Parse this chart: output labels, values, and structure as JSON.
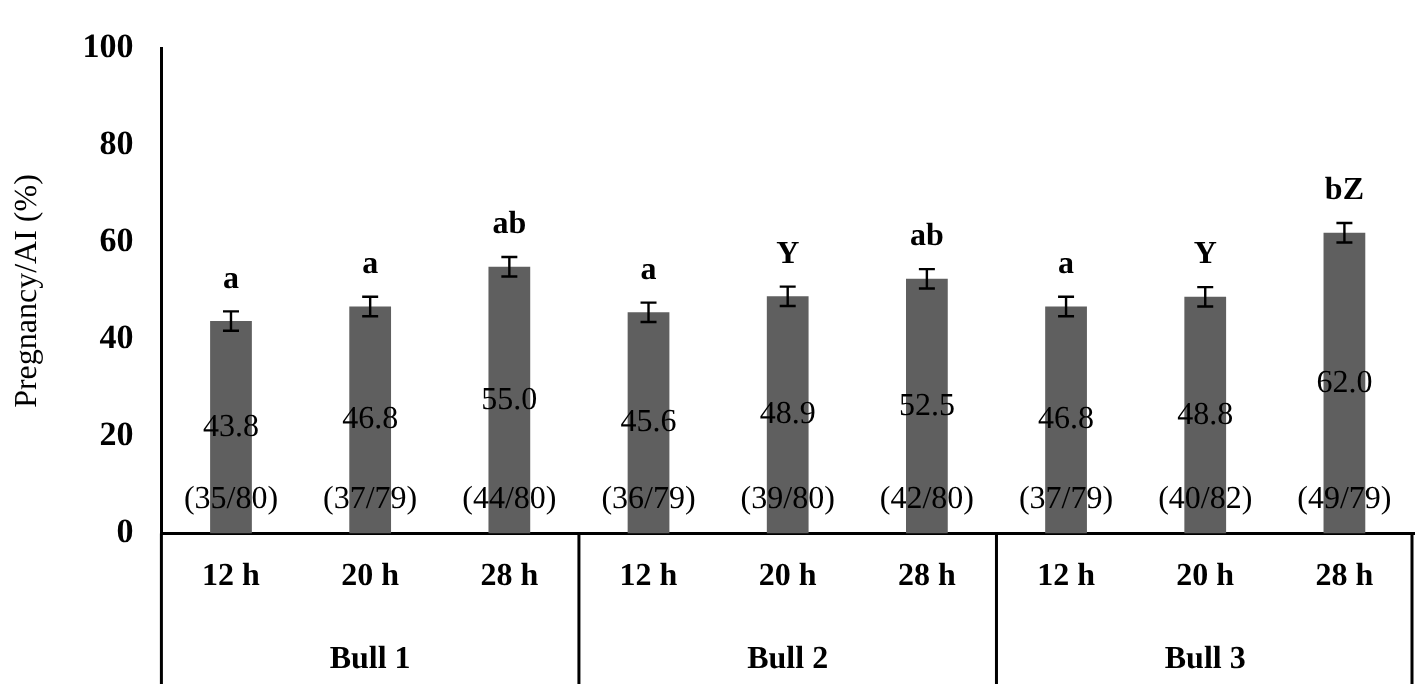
{
  "chart_data": {
    "type": "bar",
    "ylabel": "Pregnancy/AI (%)",
    "categories": [
      "12 h",
      "20 h",
      "28 h",
      "12 h",
      "20 h",
      "28 h",
      "12 h",
      "20 h",
      "28 h"
    ],
    "values": [
      43.8,
      46.8,
      55.0,
      45.6,
      48.9,
      52.5,
      46.8,
      48.8,
      62.0
    ],
    "errors": [
      2,
      2,
      2,
      2,
      2,
      2,
      2,
      2,
      2
    ],
    "value_labels": [
      "43.8",
      "46.8",
      "55.0",
      "45.6",
      "48.9",
      "52.5",
      "46.8",
      "48.8",
      "62.0"
    ],
    "color": "#5f5f5f",
    "ylim": [
      0,
      100
    ],
    "yticks": [
      0,
      20,
      40,
      60,
      80,
      100
    ],
    "grid": false,
    "legend": false,
    "annotations": [
      "a",
      "a",
      "ab",
      "a",
      "Y",
      "ab",
      "a",
      "Y",
      "bZ",
      "(35/80)",
      "(37/79)",
      "(44/80)",
      "(36/79)",
      "(39/80)",
      "(42/80)",
      "(37/79)",
      "(40/82)",
      "(49/79)",
      "Bull 1",
      "Bull 2",
      "Bull 3"
    ]
  }
}
